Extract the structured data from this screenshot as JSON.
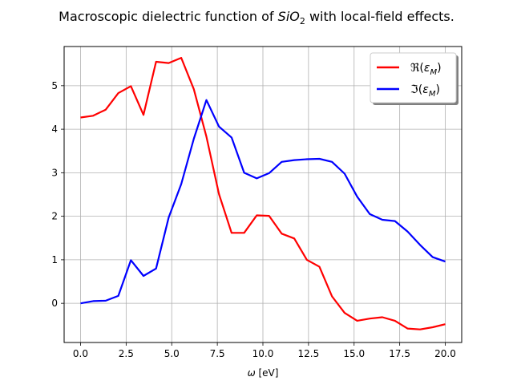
{
  "chart_data": {
    "type": "line",
    "title_prefix": "Macroscopic dielectric function of ",
    "title_formula_base": "SiO",
    "title_formula_sub": "2",
    "title_suffix": " with local-field effects.",
    "xlabel_symbol": "ω",
    "xlabel_unit": " [eV]",
    "xlim": [
      -0.9,
      20.9
    ],
    "ylim": [
      -0.9,
      5.9
    ],
    "xticks": [
      0.0,
      2.5,
      5.0,
      7.5,
      10.0,
      12.5,
      15.0,
      17.5,
      20.0
    ],
    "xtick_labels": [
      "0.0",
      "2.5",
      "5.0",
      "7.5",
      "10.0",
      "12.5",
      "15.0",
      "17.5",
      "20.0"
    ],
    "yticks": [
      0,
      1,
      2,
      3,
      4,
      5
    ],
    "ytick_labels": [
      "0",
      "1",
      "2",
      "3",
      "4",
      "5"
    ],
    "grid": true,
    "legend_position": "top-right",
    "x": [
      0.0,
      0.69,
      1.38,
      2.07,
      2.76,
      3.45,
      4.14,
      4.83,
      5.52,
      6.21,
      6.9,
      7.59,
      8.28,
      8.97,
      9.66,
      10.34,
      11.03,
      11.72,
      12.41,
      13.1,
      13.79,
      14.48,
      15.17,
      15.86,
      16.55,
      17.24,
      17.93,
      18.62,
      19.31,
      20.0
    ],
    "series": [
      {
        "name": "ℜ(εM)",
        "label_op": "ℜ(",
        "label_var": "ε",
        "label_sub": "M",
        "label_close": ")",
        "color": "#ff0000",
        "values": [
          4.27,
          4.31,
          4.45,
          4.83,
          4.99,
          4.33,
          5.55,
          5.52,
          5.64,
          4.92,
          3.83,
          2.51,
          1.62,
          1.62,
          2.02,
          2.01,
          1.6,
          1.49,
          1.0,
          0.84,
          0.16,
          -0.22,
          -0.4,
          -0.35,
          -0.32,
          -0.4,
          -0.58,
          -0.6,
          -0.55,
          -0.48
        ]
      },
      {
        "name": "ℑ(εM)",
        "label_op": "ℑ(",
        "label_var": "ε",
        "label_sub": "M",
        "label_close": ")",
        "color": "#0000ff",
        "values": [
          0.0,
          0.05,
          0.06,
          0.17,
          0.99,
          0.63,
          0.8,
          1.97,
          2.74,
          3.78,
          4.67,
          4.06,
          3.81,
          3.0,
          2.87,
          2.99,
          3.25,
          3.29,
          3.31,
          3.32,
          3.25,
          2.98,
          2.45,
          2.05,
          1.92,
          1.89,
          1.65,
          1.34,
          1.06,
          0.96
        ]
      }
    ]
  }
}
